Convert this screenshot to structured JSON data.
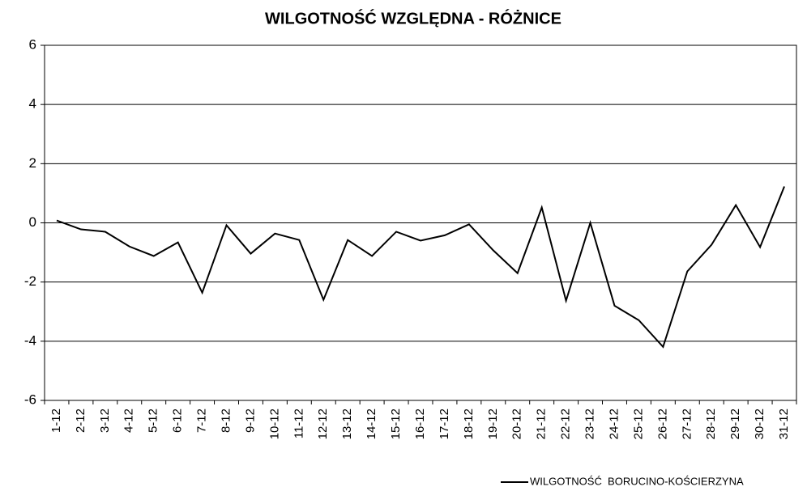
{
  "chart_data": {
    "type": "line",
    "title": "WILGOTNOŚĆ WZGLĘDNA - RÓŻNICE",
    "categories": [
      "1-12",
      "2-12",
      "3-12",
      "4-12",
      "5-12",
      "6-12",
      "7-12",
      "8-12",
      "9-12",
      "10-12",
      "11-12",
      "12-12",
      "13-12",
      "14-12",
      "15-12",
      "16-12",
      "17-12",
      "18-12",
      "19-12",
      "20-12",
      "21-12",
      "22-12",
      "23-12",
      "24-12",
      "25-12",
      "26-12",
      "27-12",
      "28-12",
      "29-12",
      "30-12",
      "31-12"
    ],
    "series": [
      {
        "name": "WILGOTNOŚĆ  BORUCINO-KOŚCIERZYNA",
        "color": "#000000",
        "values": [
          0.08,
          -0.22,
          -0.3,
          -0.8,
          -1.12,
          -0.66,
          -2.36,
          -0.08,
          -1.04,
          -0.36,
          -0.58,
          -2.6,
          -0.58,
          -1.12,
          -0.3,
          -0.6,
          -0.42,
          -0.05,
          -0.93,
          -1.7,
          0.52,
          -2.63,
          0,
          -2.8,
          -3.29,
          -4.19,
          -1.64,
          -0.74,
          0.6,
          -0.82,
          1.23
        ]
      }
    ],
    "ylim": [
      -6,
      6
    ],
    "yticks": [
      -6,
      -4,
      -2,
      0,
      2,
      4,
      6
    ],
    "grid": true,
    "legend": "bottom-right"
  }
}
